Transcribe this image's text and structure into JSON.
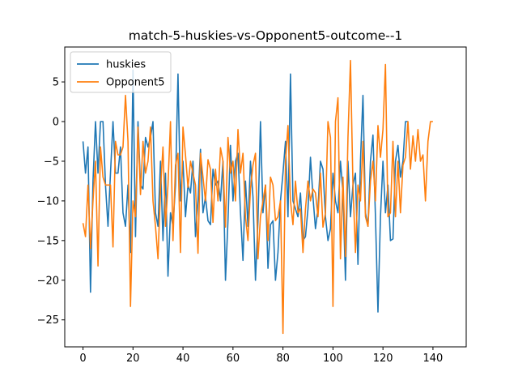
{
  "chart_data": {
    "type": "line",
    "title": "match-5-huskies-vs-Opponent5-outcome--1",
    "xlabel": "",
    "ylabel": "",
    "xlim": [
      -7.3,
      153.3
    ],
    "ylim": [
      -28.4,
      9.4
    ],
    "xticks": [
      0,
      20,
      40,
      60,
      80,
      100,
      120,
      140
    ],
    "yticks": [
      5,
      0,
      -5,
      -10,
      -15,
      -20,
      -25
    ],
    "grid": false,
    "legend_position": "upper-left",
    "colors": {
      "huskies": "#1f77b4",
      "Opponent5": "#ff7f0e"
    },
    "series": [
      {
        "name": "huskies",
        "values": [
          -2.5,
          -6.5,
          -3.2,
          -21.5,
          -7.5,
          0,
          -6.5,
          0,
          0,
          -8,
          -13.2,
          -6.5,
          0,
          -6.5,
          -6.5,
          -3.2,
          -11.5,
          -13.2,
          -8,
          -16.5,
          6.5,
          -14.5,
          0,
          -8,
          -8.5,
          -2,
          -3.2,
          -2,
          0,
          -11.5,
          -13.2,
          -5,
          -15,
          -6.5,
          -19.5,
          -11.5,
          -13.2,
          -8,
          6,
          -10,
          -5,
          -12,
          -8,
          -9,
          -5,
          -14.5,
          -10,
          -3.5,
          -11.5,
          -9.5,
          -12.5,
          -13,
          -6,
          -8,
          -7.5,
          -10,
          -5,
          -20,
          -12.5,
          -3,
          -10,
          -5,
          -4,
          -11.5,
          -17.5,
          -7.5,
          -13.2,
          -5,
          -9.5,
          -20,
          -12.5,
          0,
          -11.5,
          -8,
          -18.5,
          -13,
          -12.5,
          -20,
          -16.5,
          -10,
          -6.5,
          -2.5,
          -12,
          6,
          -10,
          -11,
          -12,
          -9,
          -15,
          -14.5,
          -11,
          -4.5,
          -9.5,
          -13.5,
          -11,
          -5,
          -6,
          -12,
          -15,
          -13.5,
          -6.5,
          -10,
          -11.5,
          -5,
          -9,
          -20,
          -5,
          -12,
          -8,
          -6.5,
          -18,
          -5,
          3.3,
          -11.5,
          -13.2,
          -5,
          -1.7,
          -12,
          -24,
          -12,
          -5,
          -11.5,
          -8,
          -15,
          -14.8,
          -5,
          -3,
          -7,
          -5,
          0,
          0
        ],
        "note": ""
      },
      {
        "name": "Opponent5",
        "values": [
          -12.8,
          -14.5,
          -8,
          -16,
          -10,
          -5,
          -18.2,
          -3.2,
          -7,
          -8,
          -8,
          -8,
          -15.8,
          -2.5,
          -4.2,
          -4.2,
          -3.2,
          3.3,
          -2.5,
          -23.3,
          -10,
          -12,
          -0.7,
          -9.2,
          -2.5,
          -6.5,
          -5,
          -0.7,
          -10,
          -13.2,
          -17.3,
          -8.5,
          -3.2,
          -13.2,
          -8,
          0,
          -15,
          -5.5,
          -4,
          -16.5,
          -0.7,
          -4.2,
          -8.3,
          -5,
          -6.5,
          -8,
          -16.6,
          -4,
          -7,
          -10,
          -4.8,
          -6,
          -12.7,
          -6,
          -10,
          -3.3,
          -5,
          -13.3,
          -2,
          -6.5,
          -5,
          -10,
          -1,
          -6.5,
          -4,
          -12,
          -15,
          -8.5,
          -5.5,
          -4,
          -17.3,
          -12,
          -10,
          -8,
          -15,
          -7,
          -8,
          -12.5,
          -12,
          -10,
          -26.7,
          -5,
          -0.5,
          -10,
          -13,
          -7.5,
          -11.5,
          -11,
          -16.5,
          -11,
          -7.5,
          -10,
          -8.5,
          -9,
          -12,
          -6.5,
          -13.3,
          -11.5,
          0,
          -2,
          -23.3,
          0,
          3,
          -17.3,
          -7,
          -17,
          -2,
          7.7,
          -8,
          -16.5,
          -8,
          -10,
          -2.5,
          -12,
          -13.2,
          -7.5,
          -5,
          -10,
          -0.5,
          -4.5,
          -1,
          7.2,
          -12,
          -11.5,
          -2.5,
          -12,
          -5,
          -11.5,
          -5.5,
          -4.5,
          0,
          -6,
          -1.8,
          -5,
          -1,
          -5,
          -4.2,
          -10,
          -2.5,
          0,
          0
        ],
        "note": ""
      }
    ]
  }
}
